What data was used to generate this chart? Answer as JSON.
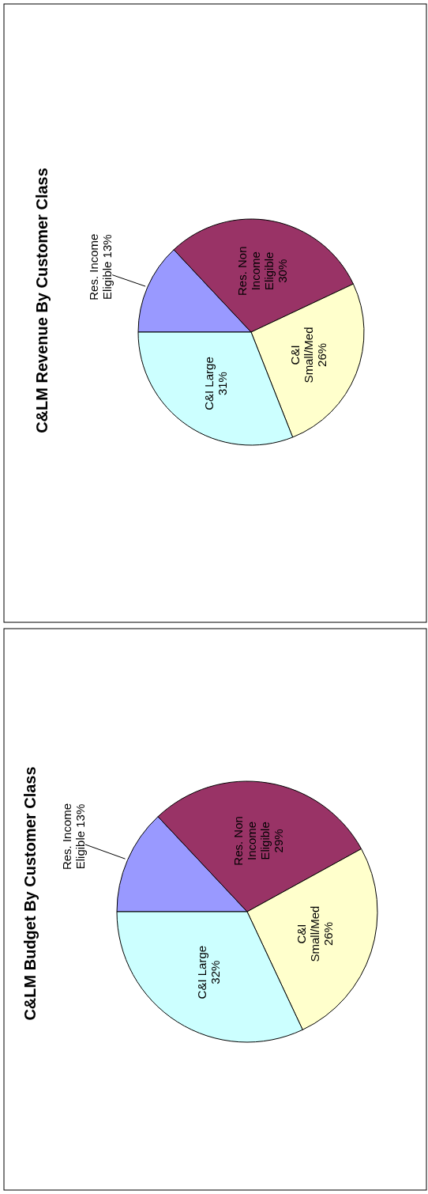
{
  "chart_data": [
    {
      "type": "pie",
      "title": "C&LM Budget By Customer Class",
      "categories": [
        "Res. Income Eligible",
        "Res. Non Income Eligible",
        "C&I Small/Med",
        "C&I Large"
      ],
      "values": [
        13,
        29,
        26,
        32
      ],
      "colors": [
        "#9999ff",
        "#993366",
        "#ffffcc",
        "#ccffff"
      ],
      "value_labels": [
        "13%",
        "29%",
        "26%",
        "32%"
      ]
    },
    {
      "type": "pie",
      "title": "C&LM Revenue By Customer Class",
      "categories": [
        "Res. Income Eligible",
        "Res. Non Income Eligible",
        "C&I Small/Med",
        "C&I Large"
      ],
      "values": [
        13,
        30,
        26,
        31
      ],
      "colors": [
        "#9999ff",
        "#993366",
        "#ffffcc",
        "#ccffff"
      ],
      "value_labels": [
        "13%",
        "30%",
        "26%",
        "31%"
      ]
    }
  ]
}
